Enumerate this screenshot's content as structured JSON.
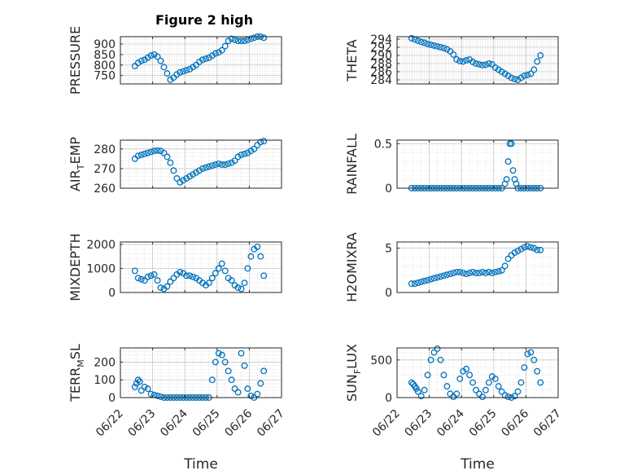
{
  "figure": {
    "title": "Figure 2 high",
    "marker_color": "#0072BD",
    "x_ticks": [
      "06/22",
      "06/23",
      "06/24",
      "06/25",
      "06/26",
      "06/27"
    ],
    "x_label": "Time",
    "grid": "on (major and minor)"
  },
  "chart_data": [
    {
      "type": "scatter",
      "title": "Figure 2 high",
      "ylabel": "PRESSURE",
      "ylim": [
        710,
        935
      ],
      "yticks": [
        750,
        800,
        850,
        900
      ],
      "ylabels": [
        "750",
        "800",
        "850",
        "900"
      ],
      "xlim": [
        "06/22",
        "06/27"
      ],
      "x": [
        0.45,
        0.55,
        0.65,
        0.75,
        0.85,
        0.95,
        1.05,
        1.15,
        1.25,
        1.35,
        1.45,
        1.55,
        1.65,
        1.75,
        1.85,
        1.95,
        2.05,
        2.15,
        2.25,
        2.35,
        2.45,
        2.55,
        2.65,
        2.75,
        2.85,
        2.95,
        3.05,
        3.15,
        3.25,
        3.35,
        3.45,
        3.55,
        3.65,
        3.75,
        3.85,
        3.95,
        4.05,
        4.15,
        4.25,
        4.35,
        4.45
      ],
      "y": [
        795,
        810,
        820,
        825,
        835,
        845,
        850,
        840,
        820,
        790,
        760,
        730,
        740,
        755,
        765,
        770,
        775,
        780,
        790,
        800,
        815,
        825,
        830,
        835,
        845,
        855,
        860,
        870,
        890,
        915,
        925,
        920,
        915,
        915,
        915,
        920,
        925,
        930,
        935,
        935,
        930
      ]
    },
    {
      "type": "scatter",
      "ylabel": "THETA",
      "ylim": [
        283,
        294.6
      ],
      "yticks": [
        284,
        286,
        288,
        290,
        292,
        294
      ],
      "ylabels": [
        "284",
        "286",
        "288",
        "290",
        "292",
        "294"
      ],
      "xlim": [
        "06/22",
        "06/27"
      ],
      "x": [
        0.45,
        0.55,
        0.65,
        0.75,
        0.85,
        0.95,
        1.05,
        1.15,
        1.25,
        1.35,
        1.45,
        1.55,
        1.65,
        1.75,
        1.85,
        1.95,
        2.05,
        2.15,
        2.25,
        2.35,
        2.45,
        2.55,
        2.65,
        2.75,
        2.85,
        2.95,
        3.05,
        3.15,
        3.25,
        3.35,
        3.45,
        3.55,
        3.65,
        3.75,
        3.85,
        3.95,
        4.05,
        4.15,
        4.25,
        4.35,
        4.45
      ],
      "y": [
        294.2,
        293.9,
        293.6,
        293.3,
        293.1,
        292.8,
        292.6,
        292.4,
        292.2,
        292.0,
        291.8,
        291.5,
        291.0,
        290.2,
        289.0,
        288.6,
        288.5,
        288.8,
        289.0,
        288.4,
        288.0,
        287.8,
        287.6,
        287.7,
        288.0,
        287.8,
        287.0,
        286.5,
        286.0,
        285.5,
        285.0,
        284.5,
        284.2,
        284.0,
        284.5,
        285.0,
        285.2,
        285.5,
        286.5,
        288.5,
        290.0
      ]
    },
    {
      "type": "scatter",
      "ylabel": "AIR_TEMP",
      "ylim": [
        260,
        284.5
      ],
      "yticks": [
        260,
        270,
        280
      ],
      "ylabels": [
        "260",
        "270",
        "280"
      ],
      "xlim": [
        "06/22",
        "06/27"
      ],
      "x": [
        0.45,
        0.55,
        0.65,
        0.75,
        0.85,
        0.95,
        1.05,
        1.15,
        1.25,
        1.35,
        1.45,
        1.55,
        1.65,
        1.75,
        1.85,
        1.95,
        2.05,
        2.15,
        2.25,
        2.35,
        2.45,
        2.55,
        2.65,
        2.75,
        2.85,
        2.95,
        3.05,
        3.15,
        3.25,
        3.35,
        3.45,
        3.55,
        3.65,
        3.75,
        3.85,
        3.95,
        4.05,
        4.15,
        4.25,
        4.35,
        4.45
      ],
      "y": [
        275,
        276.5,
        277,
        277.5,
        278,
        278.5,
        279,
        279.2,
        279,
        278,
        276,
        273,
        269,
        265,
        263,
        264,
        265,
        266,
        267,
        268,
        269,
        270,
        270.5,
        271,
        271.5,
        272,
        272.5,
        272,
        272,
        272.5,
        273,
        274,
        276,
        277,
        277.5,
        278,
        279,
        280,
        282,
        283.5,
        284
      ]
    },
    {
      "type": "scatter",
      "ylabel": "RAINFALL",
      "ylim": [
        0,
        0.54
      ],
      "yticks": [
        0,
        0.5
      ],
      "ylabels": [
        "0",
        "0.5"
      ],
      "xlim": [
        "06/22",
        "06/27"
      ],
      "x": [
        0.45,
        0.55,
        0.65,
        0.75,
        0.85,
        0.95,
        1.05,
        1.15,
        1.25,
        1.35,
        1.45,
        1.55,
        1.65,
        1.75,
        1.85,
        1.95,
        2.05,
        2.15,
        2.25,
        2.35,
        2.45,
        2.55,
        2.65,
        2.75,
        2.85,
        2.95,
        3.05,
        3.15,
        3.25,
        3.35,
        3.4,
        3.45,
        3.5,
        3.55,
        3.6,
        3.65,
        3.7,
        3.75,
        3.85,
        3.95,
        4.05,
        4.15,
        4.25,
        4.35,
        4.45
      ],
      "y": [
        0,
        0,
        0,
        0,
        0,
        0,
        0,
        0,
        0,
        0,
        0,
        0,
        0,
        0,
        0,
        0,
        0,
        0,
        0,
        0,
        0,
        0,
        0,
        0,
        0,
        0,
        0,
        0,
        0,
        0.05,
        0.1,
        0.3,
        0.5,
        0.5,
        0.2,
        0.1,
        0.05,
        0,
        0,
        0,
        0,
        0,
        0,
        0,
        0
      ]
    },
    {
      "type": "scatter",
      "ylabel": "MIXDEPTH",
      "ylim": [
        0,
        2100
      ],
      "yticks": [
        0,
        1000,
        2000
      ],
      "ylabels": [
        "0",
        "1000",
        "2000"
      ],
      "xlim": [
        "06/22",
        "06/27"
      ],
      "x": [
        0.45,
        0.55,
        0.65,
        0.75,
        0.85,
        0.95,
        1.05,
        1.15,
        1.25,
        1.35,
        1.45,
        1.55,
        1.65,
        1.75,
        1.85,
        1.95,
        2.05,
        2.15,
        2.25,
        2.35,
        2.45,
        2.55,
        2.65,
        2.75,
        2.85,
        2.95,
        3.05,
        3.15,
        3.25,
        3.35,
        3.45,
        3.55,
        3.65,
        3.75,
        3.85,
        3.95,
        4.05,
        4.15,
        4.25,
        4.35,
        4.45
      ],
      "y": [
        900,
        600,
        550,
        500,
        650,
        700,
        750,
        500,
        200,
        150,
        250,
        450,
        600,
        750,
        850,
        800,
        700,
        700,
        650,
        600,
        500,
        400,
        300,
        400,
        600,
        800,
        1000,
        1200,
        900,
        600,
        500,
        300,
        200,
        150,
        400,
        1000,
        1500,
        1800,
        1900,
        1500,
        700
      ]
    },
    {
      "type": "scatter",
      "ylabel": "H2OMIXRA",
      "ylim": [
        0,
        5.7
      ],
      "yticks": [
        0,
        5
      ],
      "ylabels": [
        "0",
        "5"
      ],
      "xlim": [
        "06/22",
        "06/27"
      ],
      "x": [
        0.45,
        0.55,
        0.65,
        0.75,
        0.85,
        0.95,
        1.05,
        1.15,
        1.25,
        1.35,
        1.45,
        1.55,
        1.65,
        1.75,
        1.85,
        1.95,
        2.05,
        2.15,
        2.25,
        2.35,
        2.45,
        2.55,
        2.65,
        2.75,
        2.85,
        2.95,
        3.05,
        3.15,
        3.25,
        3.35,
        3.45,
        3.55,
        3.65,
        3.75,
        3.85,
        3.95,
        4.05,
        4.15,
        4.25,
        4.35,
        4.45
      ],
      "y": [
        1.0,
        1.0,
        1.1,
        1.2,
        1.3,
        1.4,
        1.5,
        1.6,
        1.7,
        1.8,
        1.9,
        2.0,
        2.1,
        2.2,
        2.3,
        2.3,
        2.2,
        2.1,
        2.2,
        2.3,
        2.2,
        2.2,
        2.3,
        2.2,
        2.3,
        2.2,
        2.3,
        2.4,
        2.5,
        3.0,
        3.8,
        4.2,
        4.5,
        4.7,
        4.9,
        5.1,
        5.2,
        5.1,
        5.0,
        4.8,
        4.8
      ]
    },
    {
      "type": "scatter",
      "ylabel": "TERR_MSL",
      "ylim": [
        0,
        280
      ],
      "yticks": [
        0,
        100,
        200
      ],
      "ylabels": [
        "0",
        "100",
        "200"
      ],
      "xlim": [
        "06/22",
        "06/27"
      ],
      "x": [
        0.45,
        0.5,
        0.55,
        0.6,
        0.65,
        0.75,
        0.85,
        0.95,
        1.05,
        1.15,
        1.25,
        1.35,
        1.45,
        1.55,
        1.65,
        1.75,
        1.85,
        1.95,
        2.05,
        2.15,
        2.25,
        2.35,
        2.45,
        2.55,
        2.65,
        2.75,
        2.85,
        2.95,
        3.05,
        3.15,
        3.25,
        3.35,
        3.45,
        3.55,
        3.65,
        3.75,
        3.85,
        3.95,
        4.05,
        4.15,
        4.25,
        4.35,
        4.45
      ],
      "y": [
        60,
        80,
        100,
        90,
        40,
        60,
        50,
        20,
        15,
        10,
        5,
        0,
        0,
        0,
        0,
        0,
        0,
        0,
        0,
        0,
        0,
        0,
        0,
        0,
        0,
        0,
        100,
        200,
        250,
        240,
        200,
        150,
        100,
        50,
        30,
        250,
        180,
        50,
        10,
        0,
        20,
        80,
        150
      ]
    },
    {
      "type": "scatter",
      "ylabel": "SUN_FLUX",
      "ylim": [
        0,
        660
      ],
      "yticks": [
        0,
        500
      ],
      "ylabels": [
        "0",
        "500"
      ],
      "xlim": [
        "06/22",
        "06/27"
      ],
      "x": [
        0.45,
        0.5,
        0.55,
        0.6,
        0.65,
        0.75,
        0.85,
        0.95,
        1.05,
        1.15,
        1.25,
        1.35,
        1.45,
        1.55,
        1.65,
        1.75,
        1.85,
        1.95,
        2.05,
        2.15,
        2.25,
        2.35,
        2.45,
        2.55,
        2.65,
        2.75,
        2.85,
        2.95,
        3.05,
        3.15,
        3.25,
        3.35,
        3.45,
        3.55,
        3.65,
        3.75,
        3.85,
        3.95,
        4.05,
        4.15,
        4.25,
        4.35,
        4.45
      ],
      "y": [
        200,
        180,
        150,
        120,
        80,
        20,
        100,
        300,
        500,
        600,
        650,
        500,
        300,
        150,
        50,
        10,
        50,
        250,
        350,
        380,
        300,
        200,
        100,
        50,
        10,
        100,
        200,
        280,
        250,
        150,
        80,
        30,
        10,
        0,
        20,
        80,
        200,
        400,
        580,
        600,
        500,
        350,
        200
      ]
    }
  ]
}
